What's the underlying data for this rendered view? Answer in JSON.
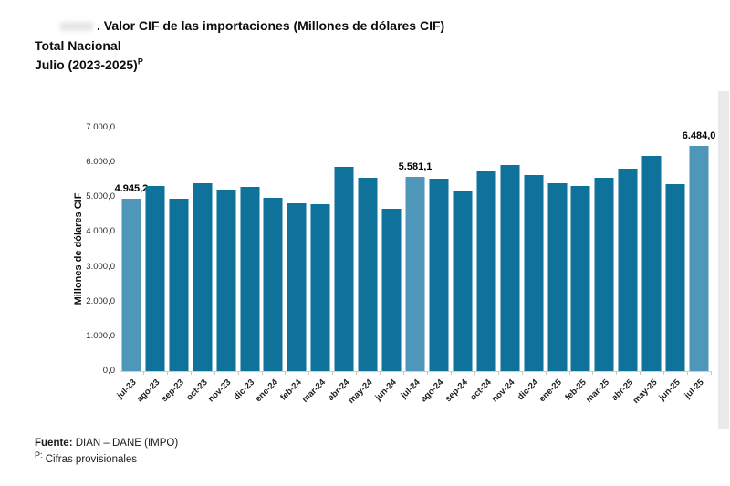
{
  "header": {
    "title_leading_mark": ".",
    "title": "Valor CIF de las importaciones (Millones de dólares CIF)",
    "subtitle": "Total Nacional",
    "period": "Julio (2023-2025)",
    "period_superscript": "P"
  },
  "chart_data": {
    "type": "bar",
    "title": "Valor CIF de las importaciones (Millones de dólares CIF)",
    "subtitle": "Total Nacional — Julio (2023-2025)P",
    "xlabel": "",
    "ylabel": "Millones de dólares CIF",
    "ylim": [
      0,
      7000
    ],
    "grid": false,
    "legend": null,
    "ytick_values": [
      0,
      1000,
      2000,
      3000,
      4000,
      5000,
      6000,
      7000
    ],
    "ytick_labels": [
      "0,0",
      "1.000,0",
      "2.000,0",
      "3.000,0",
      "4.000,0",
      "5.000,0",
      "6.000,0",
      "7.000,0"
    ],
    "categories": [
      "jul-23",
      "ago-23",
      "sep-23",
      "oct-23",
      "nov-23",
      "dic-23",
      "ene-24",
      "feb-24",
      "mar-24",
      "abr-24",
      "may-24",
      "jun-24",
      "jul-24",
      "ago-24",
      "sep-24",
      "oct-24",
      "nov-24",
      "dic-24",
      "ene-25",
      "feb-25",
      "mar-25",
      "abr-25",
      "may-25",
      "jun-25",
      "jul-25"
    ],
    "values": [
      4945.2,
      5330,
      4965,
      5405,
      5210,
      5295,
      4985,
      4830,
      4790,
      5880,
      5565,
      4660,
      5581.1,
      5545,
      5185,
      5760,
      5915,
      5650,
      5400,
      5325,
      5565,
      5815,
      6180,
      5370,
      6484.0
    ],
    "value_annotations": [
      {
        "index": 0,
        "text": "4.945,2"
      },
      {
        "index": 12,
        "text": "5.581,1"
      },
      {
        "index": 24,
        "text": "6.484,0"
      }
    ],
    "highlighted_indices": [
      0,
      12,
      24
    ],
    "colors": {
      "bar": "#0e729b",
      "bar_highlight": "#4e97bb",
      "axis_line": "#cfcfcf"
    }
  },
  "footer": {
    "source_label": "Fuente:",
    "source_text": " DIAN – DANE (IMPO)",
    "note_superscript": "P:",
    "note_text": " Cifras provisionales"
  }
}
